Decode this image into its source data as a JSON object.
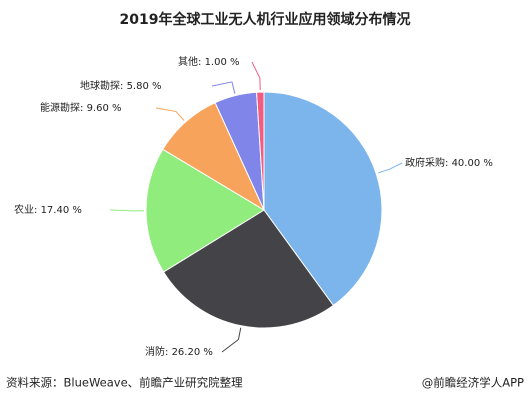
{
  "chart_data": {
    "type": "pie",
    "title": "2019年全球工业无人机行业应用领域分布情况",
    "categories": [
      "政府采购",
      "消防",
      "农业",
      "能源勘探",
      "地球勘探",
      "其他"
    ],
    "values": [
      40.0,
      26.2,
      17.4,
      9.6,
      5.8,
      1.0
    ],
    "value_labels": [
      "40.00 %",
      "26.20 %",
      "17.40 %",
      "9.60 %",
      "5.80 %",
      "1.00 %"
    ],
    "label_separator": ": ",
    "colors": [
      "#7cb5ec",
      "#434348",
      "#90ed7d",
      "#f7a35c",
      "#8085e9",
      "#f15c80"
    ],
    "source": "资料来源：BlueWeave、前瞻产业研究院整理",
    "credit": "@前瞻经济学人APP"
  }
}
